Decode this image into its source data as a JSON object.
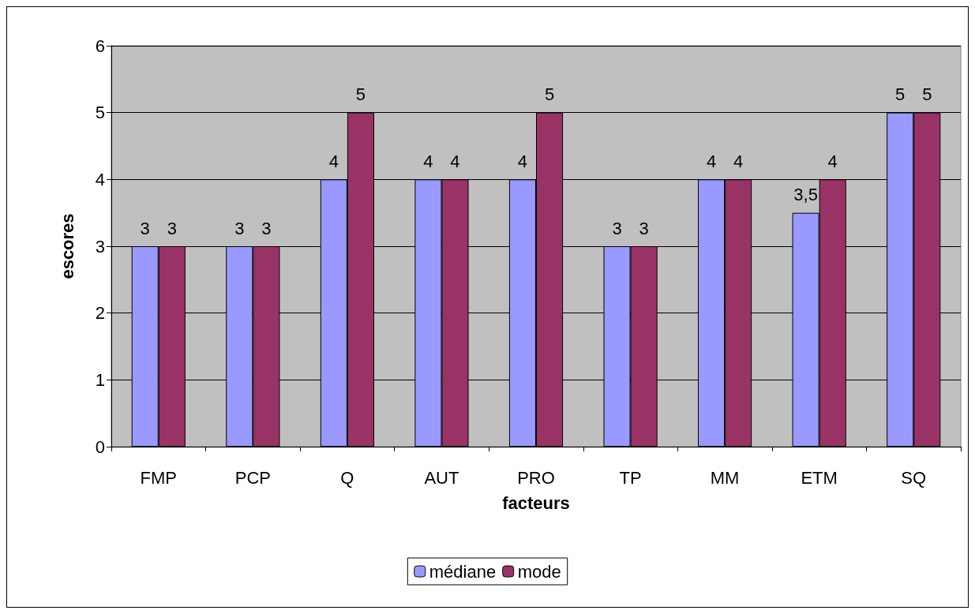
{
  "chart_data": {
    "type": "bar",
    "xlabel": "facteurs",
    "ylabel": "escores",
    "categories": [
      "FMP",
      "PCP",
      "Q",
      "AUT",
      "PRO",
      "TP",
      "MM",
      "ETM",
      "SQ"
    ],
    "series": [
      {
        "name": "médiane",
        "color": "#9999ff",
        "values": [
          3,
          3,
          4,
          4,
          4,
          3,
          4,
          3.5,
          5
        ],
        "value_labels": [
          "3",
          "3",
          "4",
          "4",
          "4",
          "3",
          "4",
          "3,5",
          "5"
        ]
      },
      {
        "name": "mode",
        "color": "#993366",
        "values": [
          3,
          3,
          5,
          4,
          5,
          3,
          4,
          4,
          5
        ],
        "value_labels": [
          "3",
          "3",
          "5",
          "4",
          "5",
          "3",
          "4",
          "4",
          "5"
        ]
      }
    ],
    "ylim": [
      0,
      6
    ],
    "yticks": [
      0,
      1,
      2,
      3,
      4,
      5,
      6
    ],
    "grid": "y",
    "legend": "bottom"
  }
}
